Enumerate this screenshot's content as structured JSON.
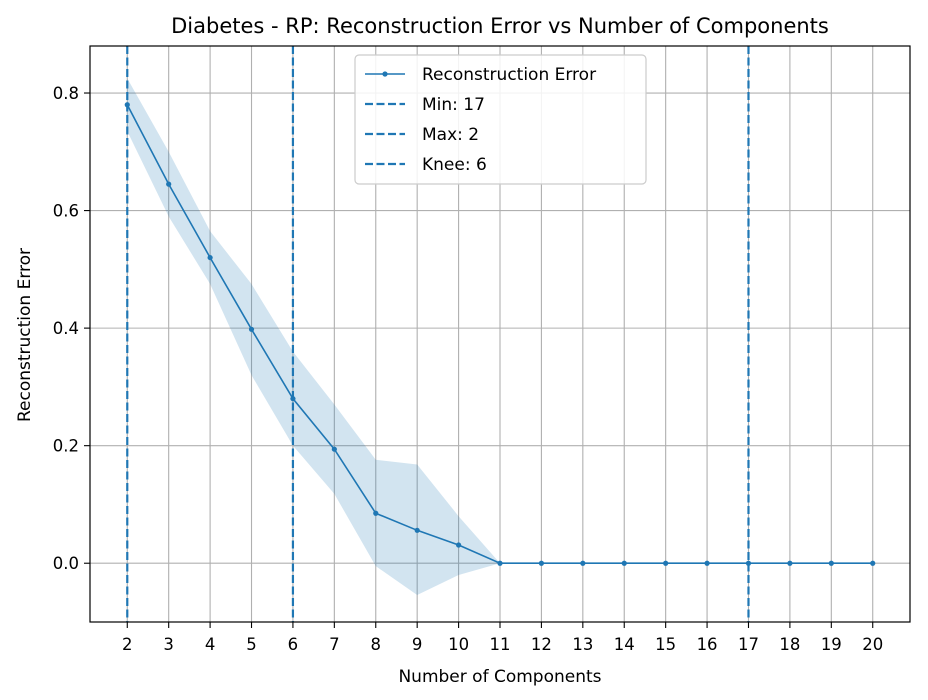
{
  "chart_data": {
    "type": "line",
    "title": "Diabetes - RP: Reconstruction Error vs Number of Components",
    "xlabel": "Number of Components",
    "ylabel": "Reconstruction Error",
    "x": [
      2,
      3,
      4,
      5,
      6,
      7,
      8,
      9,
      10,
      11,
      12,
      13,
      14,
      15,
      16,
      17,
      18,
      19,
      20
    ],
    "xlim": [
      1.1,
      20.9
    ],
    "ylim": [
      -0.1,
      0.88
    ],
    "yticks": [
      0.0,
      0.2,
      0.4,
      0.6,
      0.8
    ],
    "ytick_labels": [
      "0.0",
      "0.2",
      "0.4",
      "0.6",
      "0.8"
    ],
    "grid": true,
    "legend_position": "top-center",
    "series": [
      {
        "name": "Reconstruction Error",
        "color": "#1f77b4",
        "marker": "dot",
        "values": [
          0.78,
          0.645,
          0.52,
          0.398,
          0.28,
          0.194,
          0.085,
          0.056,
          0.031,
          0.0,
          0.0,
          0.0,
          0.0,
          0.0,
          0.0,
          0.0,
          0.0,
          0.0,
          0.0
        ],
        "band_upper": [
          0.825,
          0.7,
          0.565,
          0.475,
          0.36,
          0.27,
          0.176,
          0.168,
          0.08,
          0.0,
          0.0,
          0.0,
          0.0,
          0.0,
          0.0,
          0.0,
          0.0,
          0.0,
          0.0
        ],
        "band_lower": [
          0.735,
          0.59,
          0.475,
          0.32,
          0.2,
          0.118,
          -0.005,
          -0.054,
          -0.02,
          0.0,
          0.0,
          0.0,
          0.0,
          0.0,
          0.0,
          0.0,
          0.0,
          0.0,
          0.0
        ],
        "band_color": "#1f77b4"
      }
    ],
    "vlines": [
      {
        "name": "Min: 17",
        "x": 17,
        "color": "#1f77b4",
        "style": "dashed"
      },
      {
        "name": "Max: 2",
        "x": 2,
        "color": "#1f77b4",
        "style": "dashed"
      },
      {
        "name": "Knee: 6",
        "x": 6,
        "color": "#1f77b4",
        "style": "dashed"
      }
    ]
  }
}
